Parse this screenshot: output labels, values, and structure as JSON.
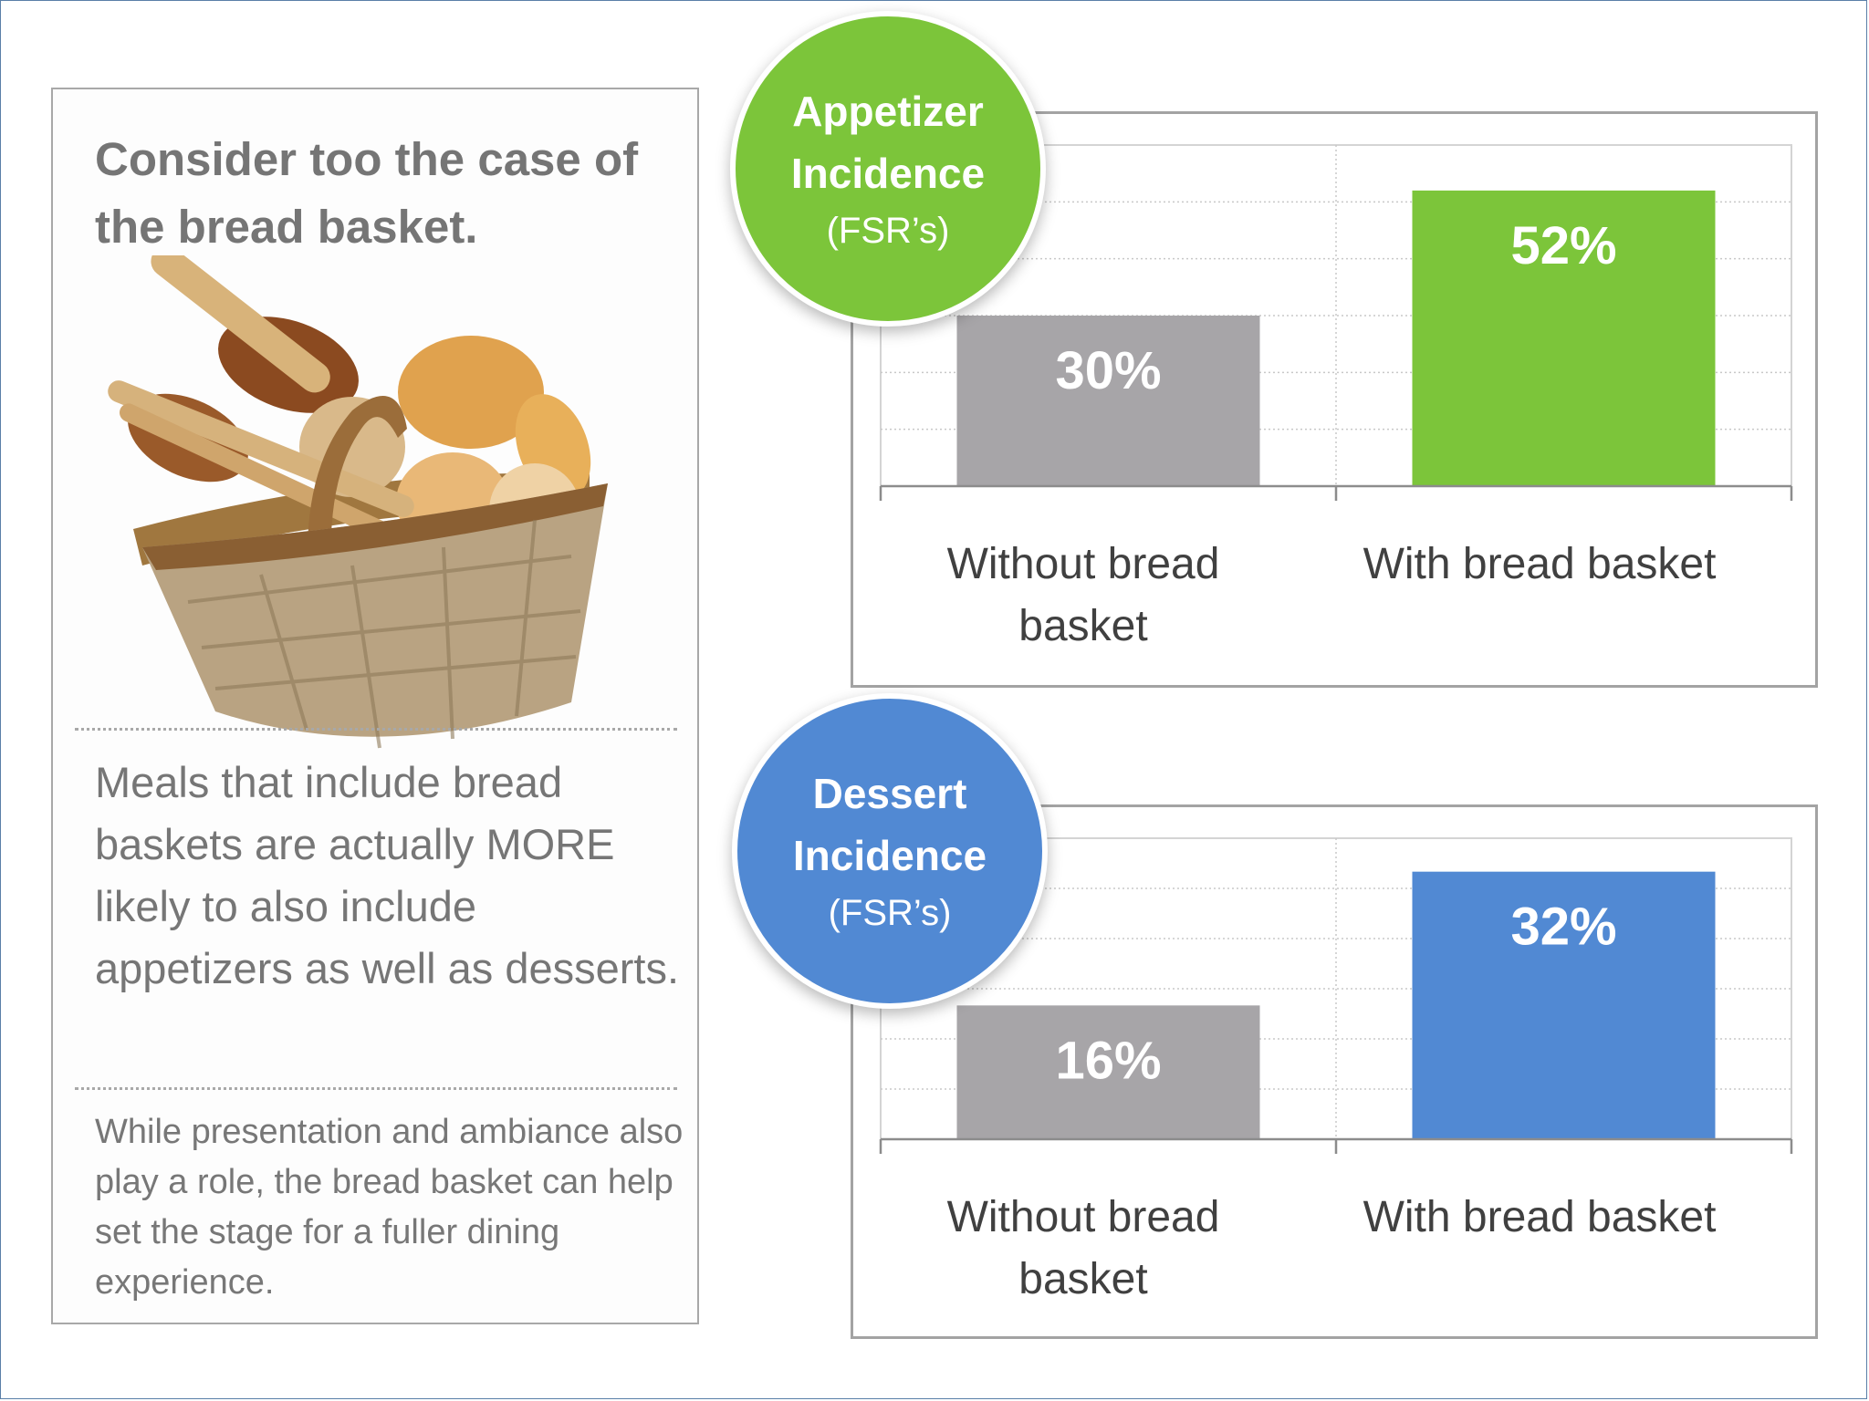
{
  "left": {
    "headline": "Consider too the case of the bread basket.",
    "body": "Meals that include bread baskets are actually MORE likely to also include appetizers as well as desserts.",
    "note": "While presentation and ambiance also play a role, the bread basket can help set the stage for a fuller dining experience."
  },
  "badges": {
    "appetizer": {
      "title_line1": "Appetizer",
      "title_line2": "Incidence",
      "sub": "(FSR’s)"
    },
    "dessert": {
      "title_line1": "Dessert",
      "title_line2": "Incidence",
      "sub": "(FSR’s)"
    }
  },
  "chart_data": [
    {
      "type": "bar",
      "categories": [
        "Without bread basket",
        "With bread basket"
      ],
      "values": [
        30,
        52
      ],
      "value_labels": [
        "30%",
        "52%"
      ],
      "colors": [
        "#a7a5a8",
        "#7cc53a"
      ],
      "title": "Appetizer Incidence (FSR’s)",
      "unit": "%",
      "ylim": [
        0,
        60
      ],
      "grid": true
    },
    {
      "type": "bar",
      "categories": [
        "Without bread basket",
        "With bread basket"
      ],
      "values": [
        16,
        32
      ],
      "value_labels": [
        "16%",
        "32%"
      ],
      "colors": [
        "#a7a5a8",
        "#5189d3"
      ],
      "title": "Dessert Incidence (FSR’s)",
      "unit": "%",
      "ylim": [
        0,
        36
      ],
      "grid": true
    }
  ]
}
